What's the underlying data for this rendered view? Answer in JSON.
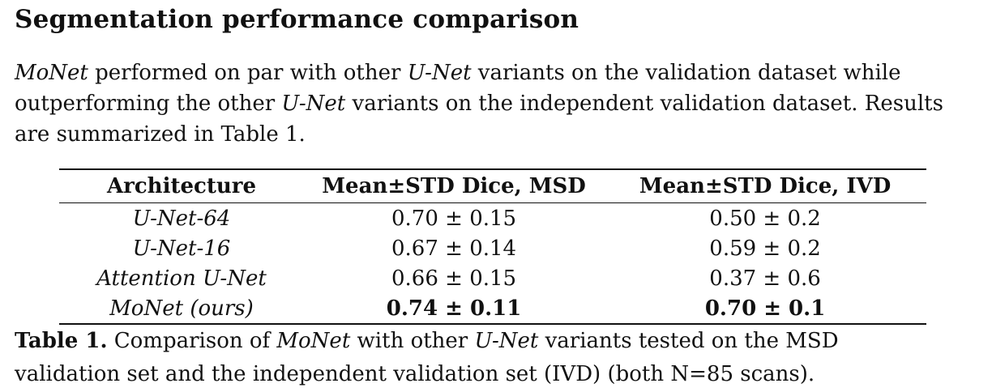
{
  "section": {
    "heading": "Segmentation performance comparison"
  },
  "paragraph": {
    "line1": [
      {
        "text": "MoNet",
        "italic": true
      },
      {
        "text": " performed on par with other ",
        "italic": false
      },
      {
        "text": "U-Net",
        "italic": true
      },
      {
        "text": " variants on the validation dataset while",
        "italic": false
      }
    ],
    "line2": [
      {
        "text": "outperforming the other ",
        "italic": false
      },
      {
        "text": "U-Net",
        "italic": true
      },
      {
        "text": " variants on the independent validation dataset. Results",
        "italic": false
      }
    ],
    "line3": [
      {
        "text": "are summarized in Table 1.",
        "italic": false
      }
    ]
  },
  "table": {
    "headers": [
      "Architecture",
      "Mean±STD Dice, MSD",
      "Mean±STD Dice, IVD"
    ],
    "rows": [
      {
        "arch": "U-Net-64",
        "msd": "0.70 ± 0.15",
        "ivd": "0.50 ± 0.2",
        "best": false
      },
      {
        "arch": "U-Net-16",
        "msd": "0.67 ± 0.14",
        "ivd": "0.59 ± 0.2",
        "best": false
      },
      {
        "arch": "Attention U-Net",
        "msd": "0.66 ± 0.15",
        "ivd": "0.37 ± 0.6",
        "best": false
      },
      {
        "arch": "MoNet (ours)",
        "msd": "0.74 ± 0.11",
        "ivd": "0.70 ± 0.1",
        "best": true
      }
    ]
  },
  "caption": {
    "label": "Table 1.",
    "line1": [
      {
        "text": " Comparison of ",
        "italic": false
      },
      {
        "text": "MoNet",
        "italic": true
      },
      {
        "text": " with other ",
        "italic": false
      },
      {
        "text": "U-Net",
        "italic": true
      },
      {
        "text": " variants tested on the MSD",
        "italic": false
      }
    ],
    "line2": [
      {
        "text": "validation set and the independent validation set (IVD) (both N=85 scans).",
        "italic": false
      }
    ]
  }
}
